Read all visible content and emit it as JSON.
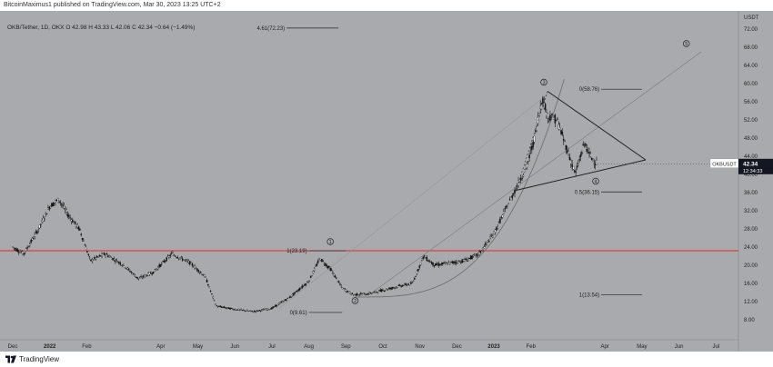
{
  "header": {
    "publish_text": "BitcoinMaximus1 published on TradingView.com, Mar 30, 2023 13:25 UTC+2"
  },
  "symbol": {
    "title": "OKB/Tether, 1D, OKX",
    "ohlc": "O 42.98  H 43.33  L 42.06  C 42.34  −0.64 (−1.49%)"
  },
  "footer": {
    "brand": "TradingView"
  },
  "price_badge": {
    "ticker": "OKBUSDT",
    "price": "42.34",
    "countdown": "12:34:33",
    "color": "#131722"
  },
  "colors": {
    "background": "#a9aaad",
    "candle": "#111111",
    "horizontal_line": "#e0292b",
    "trend_lines": "#222222",
    "curve": "#6a6a6a"
  },
  "chart_data": {
    "type": "candlestick",
    "symbol": "OKB/Tether, 1D, OKX",
    "y_axis_unit": "USDT",
    "ylim": [
      4,
      76
    ],
    "y_ticks": [
      8.0,
      12.0,
      16.0,
      20.0,
      24.0,
      28.0,
      32.0,
      36.0,
      40.0,
      44.0,
      48.0,
      52.0,
      56.0,
      60.0,
      64.0,
      68.0,
      72.0
    ],
    "x_ticks": [
      "Dec",
      "2022",
      "Feb",
      "Apr",
      "May",
      "Jun",
      "Jul",
      "Aug",
      "Sep",
      "Oct",
      "Nov",
      "Dec",
      "2023",
      "Feb",
      "Apr",
      "May",
      "Jun",
      "Jul"
    ],
    "x_tick_month_index": [
      0,
      1,
      2,
      4,
      5,
      6,
      7,
      8,
      9,
      10,
      11,
      12,
      13,
      14,
      16,
      17,
      18,
      19
    ],
    "price_path": [
      [
        0,
        24
      ],
      [
        0.3,
        22.5
      ],
      [
        0.7,
        28
      ],
      [
        1.0,
        33
      ],
      [
        1.25,
        34.5
      ],
      [
        1.5,
        31
      ],
      [
        1.8,
        28
      ],
      [
        2.1,
        21
      ],
      [
        2.5,
        22.5
      ],
      [
        3.0,
        20
      ],
      [
        3.4,
        17
      ],
      [
        3.8,
        18.5
      ],
      [
        4.3,
        22.5
      ],
      [
        4.8,
        20.5
      ],
      [
        5.2,
        17.5
      ],
      [
        5.5,
        11
      ],
      [
        6.0,
        10.3
      ],
      [
        6.5,
        9.8
      ],
      [
        7.0,
        10.5
      ],
      [
        7.5,
        13
      ],
      [
        8.0,
        16.5
      ],
      [
        8.3,
        21.5
      ],
      [
        8.6,
        19
      ],
      [
        8.9,
        15
      ],
      [
        9.2,
        13.5
      ],
      [
        9.6,
        13.7
      ],
      [
        10.0,
        14.5
      ],
      [
        10.5,
        15.5
      ],
      [
        10.8,
        16
      ],
      [
        11.1,
        22
      ],
      [
        11.4,
        20
      ],
      [
        11.8,
        20.5
      ],
      [
        12.2,
        21
      ],
      [
        12.6,
        22.5
      ],
      [
        13.0,
        27
      ],
      [
        13.3,
        32
      ],
      [
        13.6,
        37
      ],
      [
        13.9,
        42
      ],
      [
        14.1,
        48
      ],
      [
        14.3,
        57
      ],
      [
        14.45,
        53
      ],
      [
        14.7,
        52
      ],
      [
        15.0,
        45
      ],
      [
        15.2,
        40
      ],
      [
        15.45,
        47
      ],
      [
        15.6,
        44
      ],
      [
        15.8,
        42.3
      ]
    ],
    "horizontal_line": {
      "price": 23.2,
      "color": "#e0292b"
    },
    "fib_levels": [
      {
        "label": "4.61(72.23)",
        "price": 72.23
      },
      {
        "label": "0(58.76)",
        "price": 58.76
      },
      {
        "label": "0.5(36.15)",
        "price": 36.15
      },
      {
        "label": "1(23.19)",
        "price": 23.19
      },
      {
        "label": "1(13.54)",
        "price": 13.54
      },
      {
        "label": "0(9.61)",
        "price": 9.61
      }
    ],
    "wave_labels": [
      "1",
      "2",
      "3",
      "4",
      "5"
    ],
    "last_price": 42.34
  }
}
